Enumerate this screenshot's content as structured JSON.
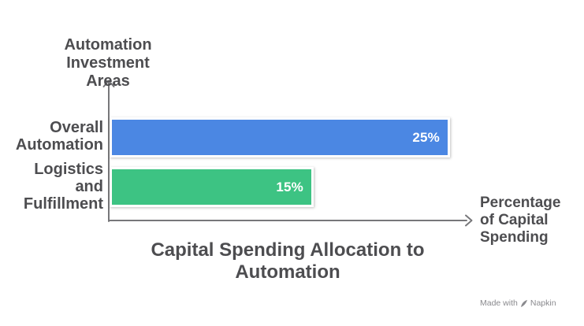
{
  "chart_data": {
    "type": "bar",
    "orientation": "horizontal",
    "title": "Capital Spending Allocation to Automation",
    "xlabel": "Percentage of Capital Spending",
    "ylabel": "Automation Investment Areas",
    "categories": [
      "Overall Automation",
      "Logistics and Fulfillment"
    ],
    "values": [
      25,
      15
    ],
    "value_labels": [
      "25%",
      "15%"
    ],
    "unit": "%",
    "xlim": [
      0,
      26.6
    ],
    "grid": false,
    "legend": "none",
    "bar_colors": [
      "#4B87E3",
      "#3DC383"
    ]
  },
  "labels": {
    "title_lines": [
      "Capital Spending Allocation to",
      "Automation"
    ],
    "y_axis_lines": [
      "Automation Investment",
      "Areas"
    ],
    "x_axis_lines": [
      "Percentage",
      "of Capital",
      "Spending"
    ],
    "category_overall_lines": [
      "Overall",
      "Automation"
    ],
    "category_logistics_lines": [
      "Logistics",
      "and",
      "Fulfillment"
    ]
  },
  "watermark": {
    "prefix": "Made with",
    "brand": "Napkin"
  },
  "colors": {
    "background": "#FFFFFF",
    "text": "#4D4D50",
    "axis": "#77777A",
    "value_text": "#FFFFFF",
    "watermark": "#8A8A8E",
    "bar_blue": "#4B87E3",
    "bar_green": "#3DC383"
  }
}
